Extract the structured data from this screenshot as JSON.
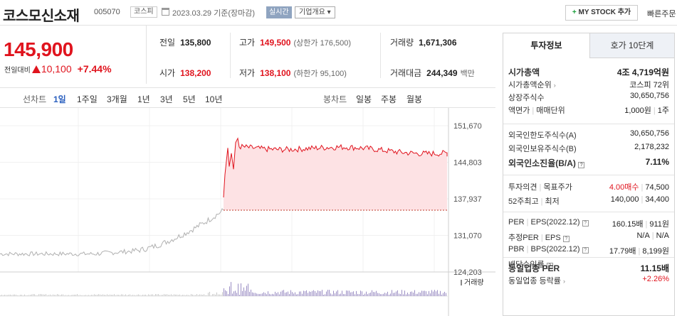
{
  "header": {
    "stock_name": "코스모신소재",
    "stock_code": "005070",
    "market": "코스피",
    "date_text": "2023.03.29 기준(장마감)",
    "realtime": "실시간",
    "company_overview": "기업개요 ▾",
    "mystock_label": "MY STOCK 추가",
    "quick_order": "빠른주문"
  },
  "price": {
    "current": "145,900",
    "change_label": "전일대비",
    "change": "10,100",
    "change_pct": "+7.44%"
  },
  "stats": {
    "prev_close_label": "전일",
    "prev_close": "135,800",
    "high_label": "고가",
    "high": "149,500",
    "upper_limit": "(상한가 176,500)",
    "volume_label": "거래량",
    "volume": "1,671,306",
    "open_label": "시가",
    "open": "138,200",
    "low_label": "저가",
    "low": "138,100",
    "lower_limit": "(하한가 95,100)",
    "value_label": "거래대금",
    "value": "244,349",
    "value_unit": "백만"
  },
  "period_bar": {
    "line_chart_label": "선차트",
    "line_periods": [
      "1일",
      "1주일",
      "3개월",
      "1년",
      "3년",
      "5년",
      "10년"
    ],
    "active_period": "1일",
    "candle_label": "봉차트",
    "candle_periods": [
      "일봉",
      "주봉",
      "월봉"
    ]
  },
  "chart_data": {
    "type": "area",
    "price_ticks": [
      "151,670",
      "144,803",
      "137,937",
      "131,070",
      "124,203"
    ],
    "yticks": [
      151670,
      144803,
      137937,
      131070,
      124203
    ],
    "ylim": [
      124203,
      155000
    ],
    "prev_close": 135800,
    "volume_label": "거래량",
    "colors": {
      "prev_line": "#b0b0b0",
      "today_line": "#e0141e",
      "fill": "#fde2e4",
      "volume": "#9b8ec4"
    }
  },
  "invest_panel": {
    "tabs": [
      "투자정보",
      "호가 10단계"
    ],
    "market_cap_label": "시가총액",
    "market_cap": "4조 4,719억원",
    "market_cap_rank_label": "시가총액순위",
    "market_cap_rank": "코스피 72위",
    "shares_label": "상장주식수",
    "shares": "30,650,756",
    "par_label": "액면가",
    "par_sep": "매매단위",
    "par_value": "1,000원",
    "trade_unit": "1주",
    "foreign_limit_label": "외국인한도주식수(A)",
    "foreign_limit": "30,650,756",
    "foreign_hold_label": "외국인보유주식수(B)",
    "foreign_hold": "2,178,232",
    "foreign_ratio_label": "외국인소진율(B/A)",
    "foreign_ratio": "7.11%",
    "opinion_label": "투자의견",
    "target_label": "목표주가",
    "opinion": "4.00매수",
    "target_price": "74,500",
    "week52_label": "52주최고",
    "week52_low_label": "최저",
    "week52_high": "140,000",
    "week52_low": "34,400",
    "per_label": "PER",
    "eps_label": "EPS(2022.12)",
    "per": "160.15배",
    "eps": "911원",
    "est_per_label": "추정PER",
    "est_eps_label": "EPS",
    "est_per": "N/A",
    "est_eps": "N/A",
    "pbr_label": "PBR",
    "bps_label": "BPS(2022.12)",
    "pbr": "17.79배",
    "bps": "8,199원",
    "div_label": "배당수익률",
    "sector_per_label": "동일업종 PER",
    "sector_per": "11.15배",
    "sector_change_label": "동일업종 등락률",
    "sector_change": "+2.26%"
  }
}
